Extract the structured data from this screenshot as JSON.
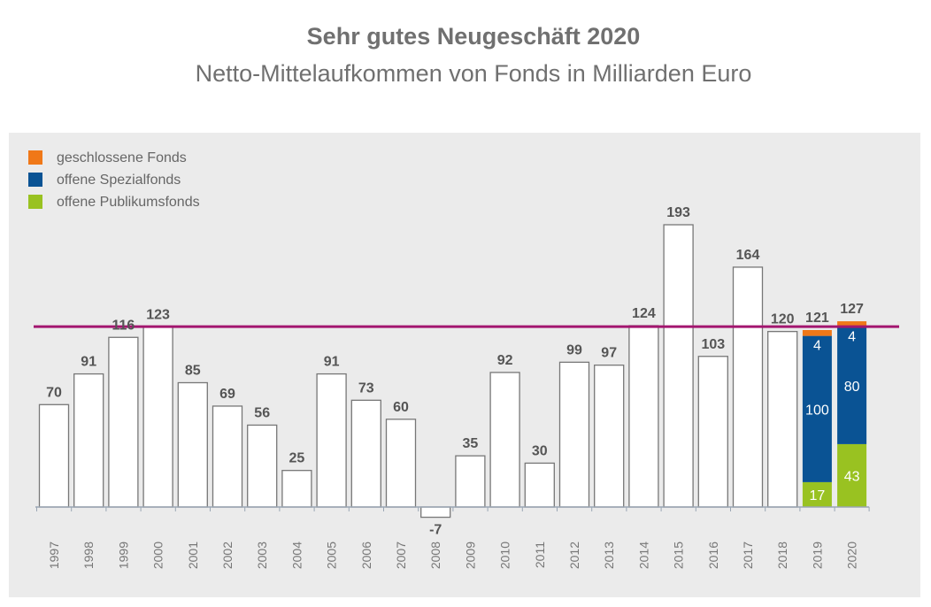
{
  "title": "Sehr gutes Neugeschäft 2020",
  "subtitle": "Netto-Mittelaufkommen von Fonds in Milliarden Euro",
  "chart_data": {
    "type": "bar",
    "categories": [
      "1997",
      "1998",
      "1999",
      "2000",
      "2001",
      "2002",
      "2003",
      "2004",
      "2005",
      "2006",
      "2007",
      "2008",
      "2009",
      "2010",
      "2011",
      "2012",
      "2013",
      "2014",
      "2015",
      "2016",
      "2017",
      "2018",
      "2019",
      "2020"
    ],
    "totals": [
      70,
      91,
      116,
      123,
      85,
      69,
      56,
      25,
      91,
      73,
      60,
      -7,
      35,
      92,
      30,
      99,
      97,
      124,
      193,
      103,
      164,
      120,
      121,
      127
    ],
    "total_labels": [
      "70",
      "91",
      "116",
      "123",
      "85",
      "69",
      "56",
      "25",
      "91",
      "73",
      "60",
      "-7",
      "35",
      "92",
      "30",
      "99",
      "97",
      "124",
      "193",
      "103",
      "164",
      "120",
      "121",
      "127"
    ],
    "series": [
      {
        "name": "offene Publikumsfonds",
        "color": "#99c221",
        "values": {
          "2019": 17,
          "2020": 43
        },
        "labels": {
          "2019": "17",
          "2020": "43"
        }
      },
      {
        "name": "offene Spezialfonds",
        "color": "#0a5394",
        "values": {
          "2019": 100,
          "2020": 80
        },
        "labels": {
          "2019": "100",
          "2020": "80"
        }
      },
      {
        "name": "geschlossene Fonds",
        "color": "#f07818",
        "values": {
          "2019": 4,
          "2020": 4
        },
        "labels": {
          "2019": "4",
          "2020": "4"
        }
      }
    ],
    "legend_order": [
      "geschlossene Fonds",
      "offene Spezialfonds",
      "offene Publikumsfonds"
    ],
    "reference_line": {
      "value": 127,
      "color": "#a3166f"
    },
    "ylim": [
      -7,
      193
    ],
    "legend": "top-left",
    "grid": false
  }
}
